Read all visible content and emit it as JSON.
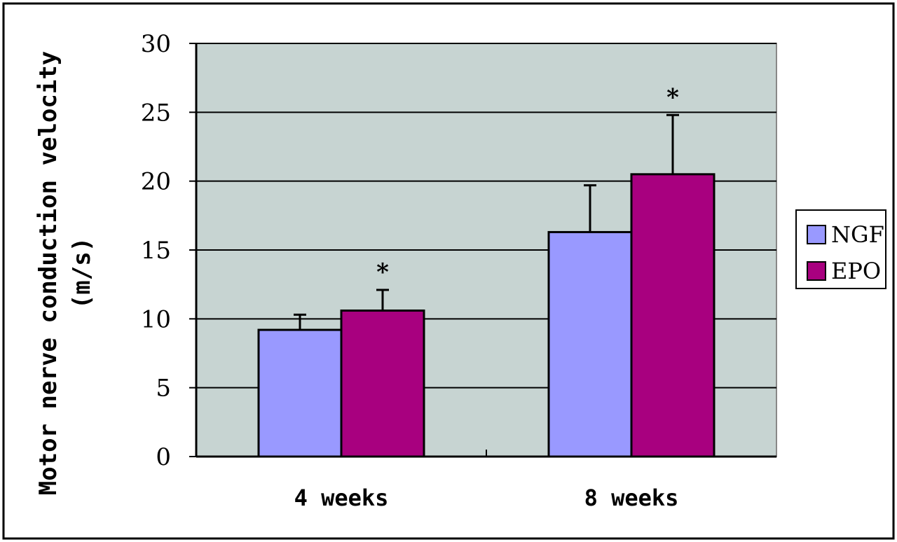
{
  "chart_data": {
    "type": "bar",
    "title": "",
    "xlabel": "",
    "ylabel_lines": [
      "Motor nerve conduction velocity",
      "(m/s)"
    ],
    "categories": [
      "4 weeks",
      "8 weeks"
    ],
    "yticks": [
      "0",
      "5",
      "10",
      "15",
      "20",
      "25",
      "30"
    ],
    "ylim": [
      0,
      30
    ],
    "grid": true,
    "legend_position": "right",
    "plot_background": "#c7d4d2",
    "series": [
      {
        "name": "NGF",
        "color": "#9999ff",
        "values": [
          9.2,
          16.3
        ],
        "errors": [
          1.1,
          3.4
        ],
        "marks": [
          "",
          ""
        ]
      },
      {
        "name": "EPO",
        "color": "#a8007f",
        "values": [
          10.6,
          20.5
        ],
        "errors": [
          1.5,
          4.3
        ],
        "marks": [
          "*",
          "*"
        ]
      }
    ]
  }
}
